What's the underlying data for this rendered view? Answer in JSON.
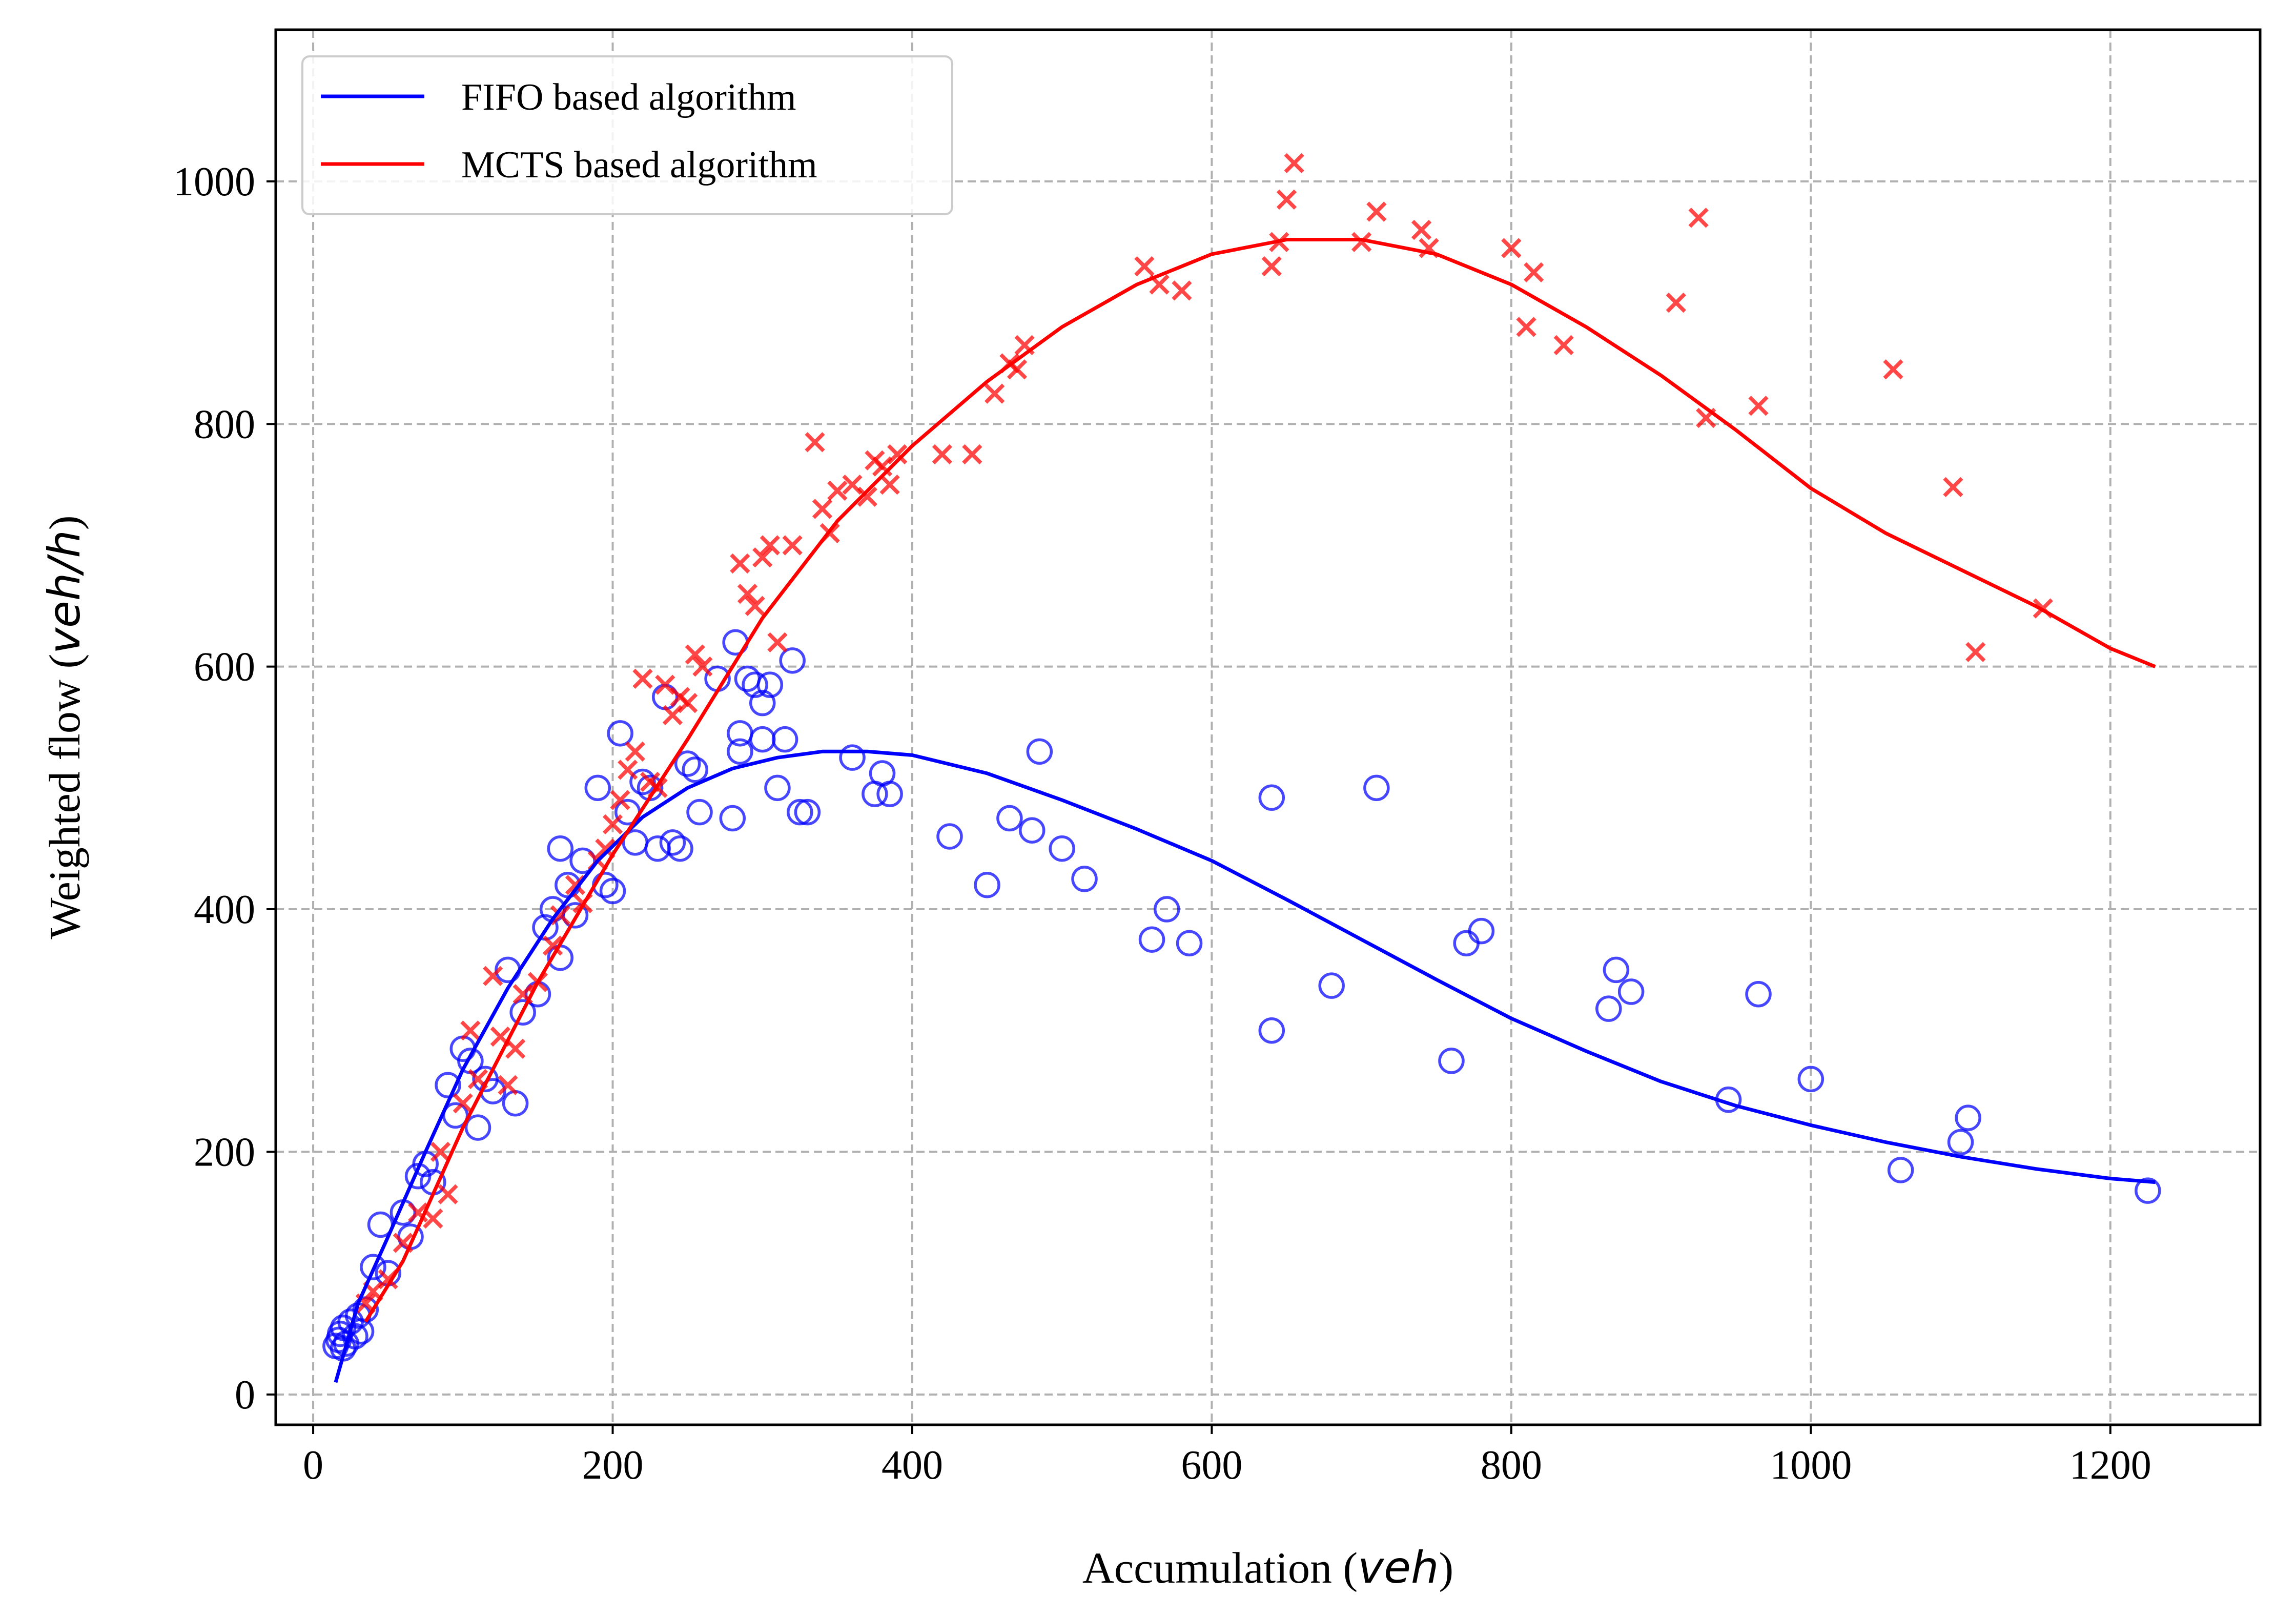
{
  "chart_data": {
    "type": "scatter",
    "xlabel_main": "Accumulation (",
    "xlabel_unit": "veh",
    "xlabel_close": ")",
    "ylabel_main": "Weighted flow (",
    "ylabel_unit": "veh/h",
    "ylabel_close": ")",
    "xlim": [
      -25,
      1300
    ],
    "ylim": [
      -25,
      1125
    ],
    "xticks": [
      0,
      200,
      400,
      600,
      800,
      1000,
      1200
    ],
    "yticks": [
      0,
      200,
      400,
      600,
      800,
      1000
    ],
    "xtick_labels": [
      "0",
      "200",
      "400",
      "600",
      "800",
      "1000",
      "1200"
    ],
    "ytick_labels": [
      "0",
      "200",
      "400",
      "600",
      "800",
      "1000"
    ],
    "grid": true,
    "legend_position": "top-left",
    "colors": {
      "fifo": "#0000ff",
      "mcts": "#ff0000",
      "grid": "#b0b0b0"
    },
    "series": [
      {
        "name": "FIFO based algorithm",
        "line": {
          "x": [
            15,
            30,
            50,
            75,
            100,
            130,
            160,
            190,
            220,
            250,
            280,
            310,
            340,
            370,
            400,
            450,
            500,
            550,
            600,
            650,
            700,
            750,
            800,
            850,
            900,
            950,
            1000,
            1050,
            1100,
            1150,
            1200,
            1230
          ],
          "y": [
            10,
            75,
            130,
            200,
            268,
            335,
            392,
            440,
            476,
            500,
            516,
            525,
            530,
            530,
            527,
            512,
            490,
            466,
            440,
            408,
            375,
            342,
            310,
            283,
            258,
            238,
            222,
            208,
            196,
            186,
            178,
            175
          ]
        },
        "points": [
          [
            15,
            40
          ],
          [
            17,
            45
          ],
          [
            18,
            50
          ],
          [
            20,
            55
          ],
          [
            22,
            42
          ],
          [
            25,
            60
          ],
          [
            28,
            48
          ],
          [
            30,
            65
          ],
          [
            32,
            52
          ],
          [
            20,
            38
          ],
          [
            35,
            70
          ],
          [
            40,
            105
          ],
          [
            45,
            140
          ],
          [
            50,
            100
          ],
          [
            60,
            150
          ],
          [
            65,
            130
          ],
          [
            70,
            180
          ],
          [
            75,
            190
          ],
          [
            80,
            175
          ],
          [
            90,
            255
          ],
          [
            95,
            230
          ],
          [
            100,
            285
          ],
          [
            105,
            275
          ],
          [
            110,
            220
          ],
          [
            115,
            260
          ],
          [
            120,
            250
          ],
          [
            130,
            350
          ],
          [
            135,
            240
          ],
          [
            140,
            315
          ],
          [
            150,
            330
          ],
          [
            155,
            385
          ],
          [
            160,
            400
          ],
          [
            165,
            360
          ],
          [
            165,
            450
          ],
          [
            170,
            420
          ],
          [
            175,
            395
          ],
          [
            180,
            440
          ],
          [
            190,
            500
          ],
          [
            195,
            420
          ],
          [
            200,
            415
          ],
          [
            205,
            545
          ],
          [
            210,
            480
          ],
          [
            215,
            455
          ],
          [
            220,
            505
          ],
          [
            225,
            500
          ],
          [
            230,
            450
          ],
          [
            235,
            575
          ],
          [
            240,
            455
          ],
          [
            245,
            450
          ],
          [
            250,
            520
          ],
          [
            255,
            515
          ],
          [
            258,
            480
          ],
          [
            270,
            590
          ],
          [
            280,
            475
          ],
          [
            282,
            620
          ],
          [
            285,
            545
          ],
          [
            285,
            530
          ],
          [
            290,
            590
          ],
          [
            295,
            585
          ],
          [
            300,
            570
          ],
          [
            300,
            540
          ],
          [
            305,
            585
          ],
          [
            310,
            500
          ],
          [
            315,
            540
          ],
          [
            320,
            605
          ],
          [
            325,
            480
          ],
          [
            330,
            480
          ],
          [
            360,
            525
          ],
          [
            375,
            495
          ],
          [
            380,
            512
          ],
          [
            385,
            495
          ],
          [
            425,
            460
          ],
          [
            450,
            420
          ],
          [
            465,
            475
          ],
          [
            480,
            465
          ],
          [
            485,
            530
          ],
          [
            500,
            450
          ],
          [
            515,
            425
          ],
          [
            560,
            375
          ],
          [
            570,
            400
          ],
          [
            585,
            372
          ],
          [
            640,
            300
          ],
          [
            640,
            492
          ],
          [
            680,
            337
          ],
          [
            710,
            500
          ],
          [
            760,
            275
          ],
          [
            770,
            372
          ],
          [
            780,
            382
          ],
          [
            865,
            318
          ],
          [
            870,
            350
          ],
          [
            880,
            332
          ],
          [
            945,
            243
          ],
          [
            965,
            330
          ],
          [
            1000,
            260
          ],
          [
            1060,
            185
          ],
          [
            1100,
            208
          ],
          [
            1105,
            228
          ],
          [
            1225,
            168
          ]
        ]
      },
      {
        "name": "MCTS based algorithm",
        "line": {
          "x": [
            35,
            60,
            100,
            150,
            200,
            250,
            300,
            350,
            400,
            450,
            500,
            550,
            600,
            650,
            700,
            750,
            800,
            850,
            900,
            950,
            1000,
            1050,
            1100,
            1150,
            1200,
            1230
          ],
          "y": [
            60,
            110,
            220,
            340,
            445,
            540,
            640,
            720,
            782,
            835,
            880,
            915,
            940,
            952,
            952,
            940,
            915,
            880,
            840,
            795,
            747,
            710,
            680,
            650,
            615,
            600
          ]
        },
        "points": [
          [
            35,
            75
          ],
          [
            40,
            85
          ],
          [
            50,
            95
          ],
          [
            60,
            125
          ],
          [
            70,
            150
          ],
          [
            80,
            145
          ],
          [
            85,
            200
          ],
          [
            90,
            165
          ],
          [
            100,
            240
          ],
          [
            105,
            300
          ],
          [
            110,
            260
          ],
          [
            120,
            345
          ],
          [
            125,
            295
          ],
          [
            130,
            255
          ],
          [
            135,
            285
          ],
          [
            140,
            330
          ],
          [
            150,
            340
          ],
          [
            160,
            370
          ],
          [
            165,
            395
          ],
          [
            175,
            420
          ],
          [
            180,
            405
          ],
          [
            190,
            440
          ],
          [
            195,
            450
          ],
          [
            200,
            470
          ],
          [
            205,
            490
          ],
          [
            210,
            515
          ],
          [
            215,
            530
          ],
          [
            220,
            590
          ],
          [
            225,
            505
          ],
          [
            230,
            500
          ],
          [
            235,
            585
          ],
          [
            240,
            560
          ],
          [
            245,
            575
          ],
          [
            250,
            570
          ],
          [
            255,
            610
          ],
          [
            260,
            600
          ],
          [
            285,
            685
          ],
          [
            290,
            660
          ],
          [
            295,
            650
          ],
          [
            300,
            690
          ],
          [
            305,
            700
          ],
          [
            310,
            620
          ],
          [
            320,
            700
          ],
          [
            335,
            785
          ],
          [
            340,
            730
          ],
          [
            345,
            710
          ],
          [
            350,
            745
          ],
          [
            360,
            750
          ],
          [
            370,
            740
          ],
          [
            375,
            770
          ],
          [
            380,
            765
          ],
          [
            385,
            750
          ],
          [
            390,
            775
          ],
          [
            420,
            775
          ],
          [
            440,
            775
          ],
          [
            455,
            825
          ],
          [
            465,
            850
          ],
          [
            470,
            845
          ],
          [
            475,
            865
          ],
          [
            555,
            930
          ],
          [
            565,
            915
          ],
          [
            580,
            910
          ],
          [
            640,
            930
          ],
          [
            645,
            950
          ],
          [
            650,
            985
          ],
          [
            655,
            1015
          ],
          [
            700,
            950
          ],
          [
            710,
            975
          ],
          [
            740,
            960
          ],
          [
            745,
            945
          ],
          [
            800,
            945
          ],
          [
            810,
            880
          ],
          [
            815,
            925
          ],
          [
            835,
            865
          ],
          [
            910,
            900
          ],
          [
            925,
            970
          ],
          [
            930,
            805
          ],
          [
            965,
            815
          ],
          [
            1055,
            845
          ],
          [
            1095,
            748
          ],
          [
            1110,
            612
          ],
          [
            1155,
            648
          ]
        ]
      }
    ]
  }
}
